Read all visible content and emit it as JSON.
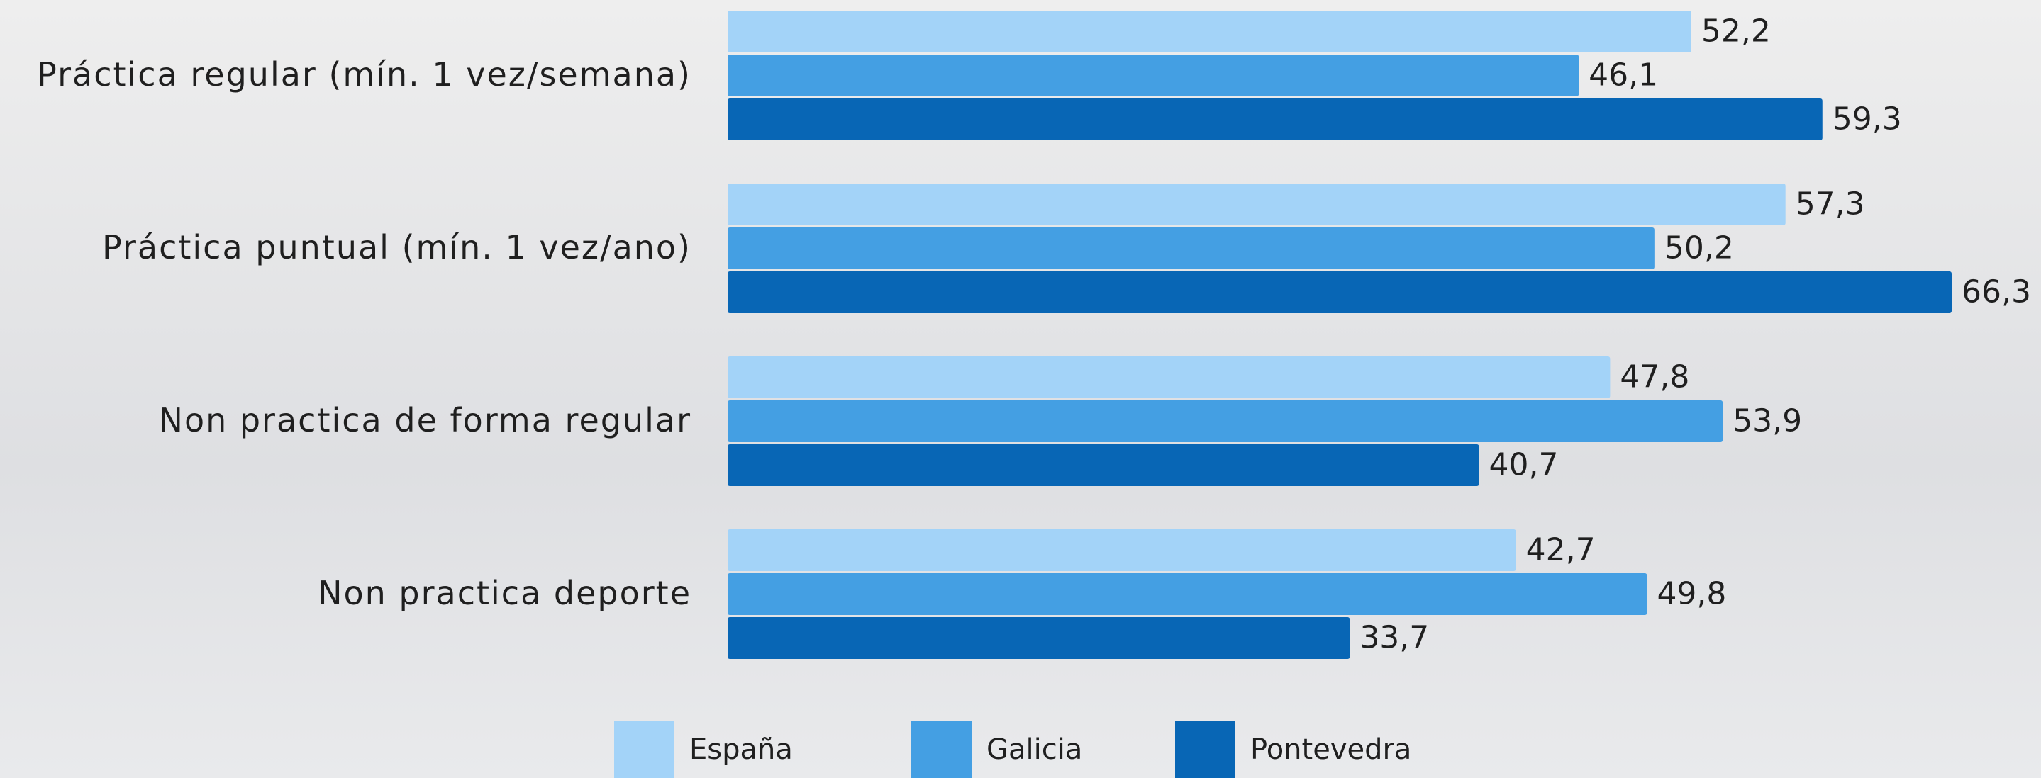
{
  "chart_data": {
    "type": "bar",
    "orientation": "horizontal",
    "categories": [
      "Práctica regular (mín. 1 vez/semana)",
      "Práctica puntual (mín. 1 vez/ano)",
      "Non practica de forma regular",
      "Non practica deporte"
    ],
    "series": [
      {
        "name": "España",
        "color": "#a3d3f8",
        "values": [
          52.2,
          57.3,
          47.8,
          42.7
        ],
        "value_labels": [
          "52,2",
          "57,3",
          "47,8",
          "42,7"
        ]
      },
      {
        "name": "Galicia",
        "color": "#449fe3",
        "values": [
          46.1,
          50.2,
          53.9,
          49.8
        ],
        "value_labels": [
          "46,1",
          "50,2",
          "53,9",
          "49,8"
        ]
      },
      {
        "name": "Pontevedra",
        "color": "#0866b5",
        "values": [
          59.3,
          66.3,
          40.7,
          33.7
        ],
        "value_labels": [
          "59,3",
          "66,3",
          "40,7",
          "33,7"
        ]
      }
    ]
  }
}
